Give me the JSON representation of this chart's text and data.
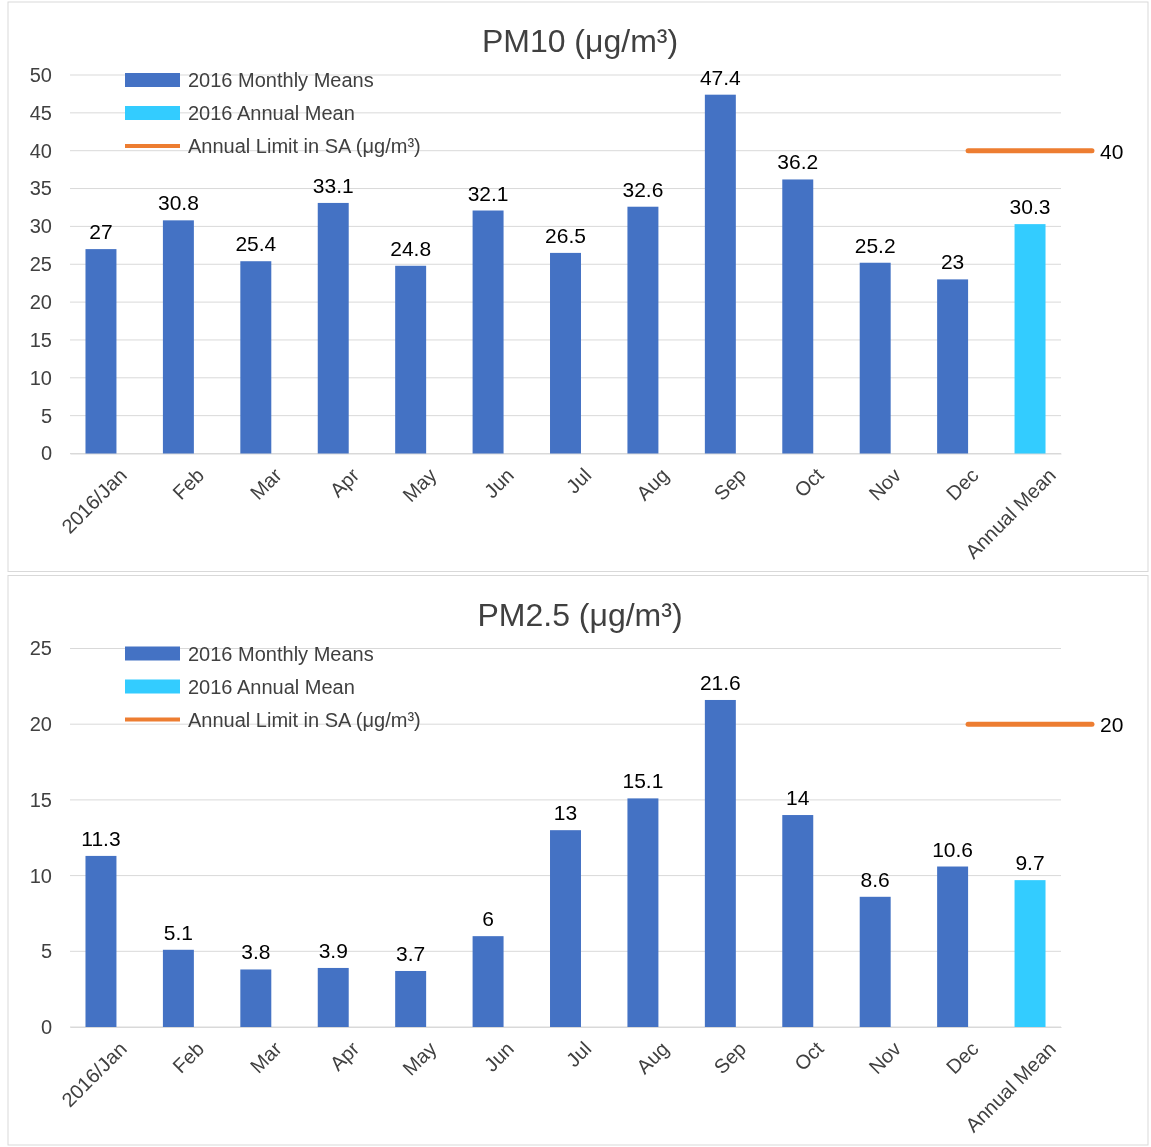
{
  "chart_data": [
    {
      "type": "bar",
      "title": "PM10 (μg/m³)",
      "categories": [
        "2016/Jan",
        "Feb",
        "Mar",
        "Apr",
        "May",
        "Jun",
        "Jul",
        "Aug",
        "Sep",
        "Oct",
        "Nov",
        "Dec",
        "Annual Mean"
      ],
      "series": [
        {
          "name": "2016 Monthly Means",
          "color": "#4472c4",
          "values": [
            27,
            30.8,
            25.4,
            33.1,
            24.8,
            32.1,
            26.5,
            32.6,
            47.4,
            36.2,
            25.2,
            23,
            null
          ]
        },
        {
          "name": "2016 Annual Mean",
          "color": "#33ccff",
          "values": [
            null,
            null,
            null,
            null,
            null,
            null,
            null,
            null,
            null,
            null,
            null,
            null,
            30.3
          ]
        }
      ],
      "ref_lines": [
        {
          "axis": "y",
          "value": 40,
          "label": "40",
          "color": "#ed7d31"
        }
      ],
      "annotations": [
        "Annual Limit in SA (μg/m³)"
      ],
      "ylim": [
        0,
        50
      ],
      "yticks": [
        0,
        5,
        10,
        15,
        20,
        25,
        30,
        35,
        40,
        45,
        50
      ],
      "grid": "y",
      "legend": "top left",
      "data_labels": true
    },
    {
      "type": "bar",
      "title": "PM2.5 (μg/m³)",
      "categories": [
        "2016/Jan",
        "Feb",
        "Mar",
        "Apr",
        "May",
        "Jun",
        "Jul",
        "Aug",
        "Sep",
        "Oct",
        "Nov",
        "Dec",
        "Annual Mean"
      ],
      "series": [
        {
          "name": "2016 Monthly Means",
          "color": "#4472c4",
          "values": [
            11.3,
            5.1,
            3.8,
            3.9,
            3.7,
            6,
            13,
            15.1,
            21.6,
            14,
            8.6,
            10.6,
            null
          ]
        },
        {
          "name": "2016 Annual Mean",
          "color": "#33ccff",
          "values": [
            null,
            null,
            null,
            null,
            null,
            null,
            null,
            null,
            null,
            null,
            null,
            null,
            9.7
          ]
        }
      ],
      "ref_lines": [
        {
          "axis": "y",
          "value": 20,
          "label": "20",
          "color": "#ed7d31"
        }
      ],
      "annotations": [
        "Annual Limit in SA (μg/m³)"
      ],
      "ylim": [
        0,
        25
      ],
      "yticks": [
        0,
        5,
        10,
        15,
        20,
        25
      ],
      "grid": "y",
      "legend": "top left",
      "data_labels": true
    }
  ]
}
